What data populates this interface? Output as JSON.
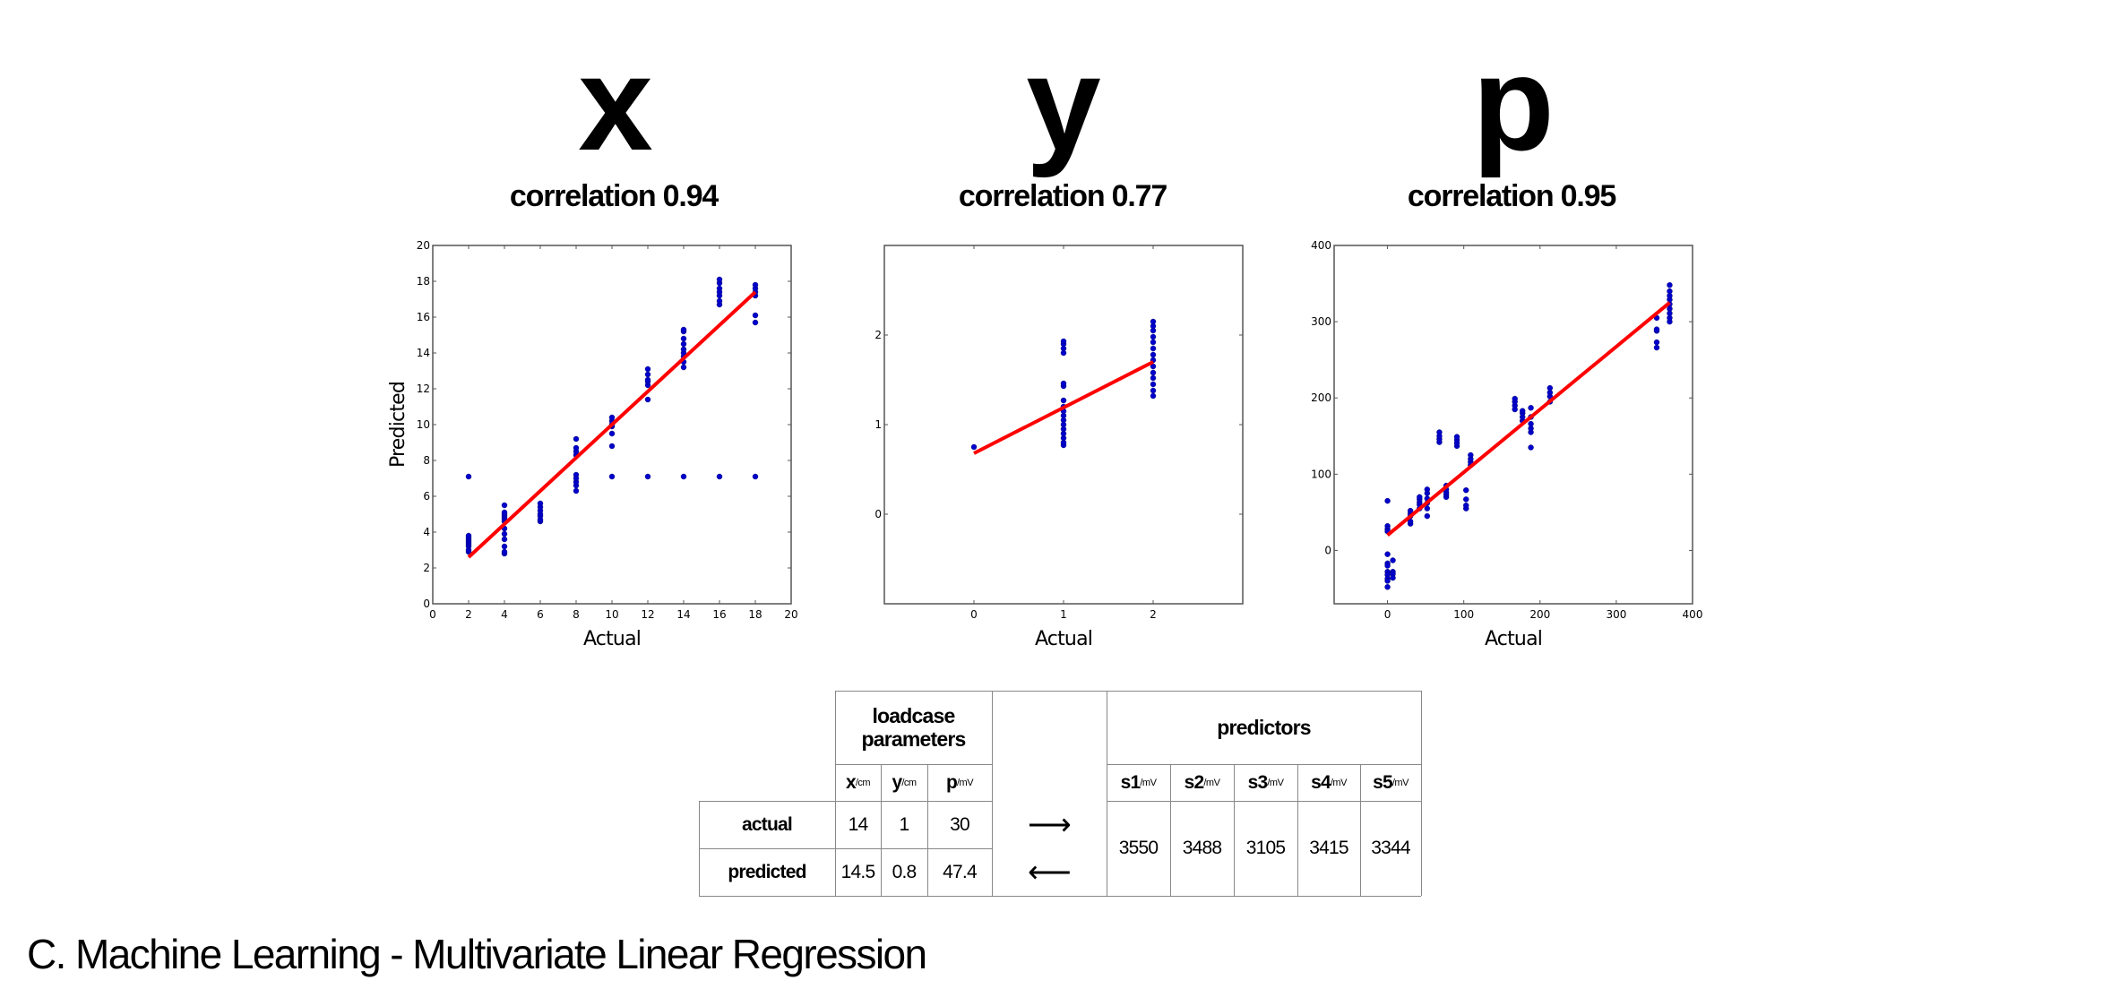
{
  "titles": [
    {
      "variable": "x",
      "correlation": "correlation 0.94"
    },
    {
      "variable": "y",
      "correlation": "correlation 0.77"
    },
    {
      "variable": "p",
      "correlation": "correlation 0.95"
    }
  ],
  "chart_data": [
    {
      "type": "scatter",
      "title": "x",
      "subtitle": "correlation 0.94",
      "xlabel": "Actual",
      "ylabel": "Predicted",
      "xlim": [
        0,
        20
      ],
      "ylim": [
        0,
        20
      ],
      "xticks": [
        0,
        2,
        4,
        6,
        8,
        10,
        12,
        14,
        16,
        18,
        20
      ],
      "yticks": [
        0,
        2,
        4,
        6,
        8,
        10,
        12,
        14,
        16,
        18,
        20
      ],
      "point_color": "#0000cc",
      "fit_color": "#ff0000",
      "fit_line": [
        [
          2,
          2.6
        ],
        [
          18,
          17.4
        ]
      ],
      "groups": [
        [
          2,
          [
            2.9,
            3.0,
            3.2,
            3.3,
            3.4,
            3.5,
            3.6,
            3.7,
            3.8,
            7.1
          ]
        ],
        [
          4,
          [
            2.8,
            2.9,
            3.2,
            3.6,
            3.9,
            4.2,
            4.6,
            4.7,
            4.8,
            4.9,
            5.0,
            5.1,
            5.5
          ]
        ],
        [
          6,
          [
            4.6,
            4.7,
            4.9,
            5.0,
            5.2,
            5.4,
            5.6
          ]
        ],
        [
          8,
          [
            6.3,
            6.6,
            6.8,
            7.0,
            7.2,
            8.3,
            8.5,
            8.7,
            9.2
          ]
        ],
        [
          10,
          [
            7.1,
            8.8,
            9.5,
            9.9,
            10.0,
            10.2,
            10.4
          ]
        ],
        [
          12,
          [
            7.1,
            11.4,
            12.2,
            12.4,
            12.5,
            12.8,
            13.1
          ]
        ],
        [
          14,
          [
            7.1,
            13.2,
            13.5,
            13.8,
            14.0,
            14.2,
            14.5,
            14.8,
            15.2,
            15.3
          ]
        ],
        [
          16,
          [
            7.1,
            16.7,
            16.9,
            17.2,
            17.4,
            17.6,
            17.9,
            18.1
          ]
        ],
        [
          18,
          [
            7.1,
            15.7,
            16.1,
            17.2,
            17.4,
            17.6,
            17.8
          ]
        ]
      ]
    },
    {
      "type": "scatter",
      "title": "y",
      "subtitle": "correlation 0.77",
      "xlabel": "Actual",
      "ylabel": "",
      "xlim": [
        -1,
        3
      ],
      "ylim": [
        -1,
        3
      ],
      "xticks": [
        0,
        1,
        2
      ],
      "yticks": [
        0,
        1,
        2
      ],
      "point_color": "#0000cc",
      "fit_color": "#ff0000",
      "fit_line": [
        [
          0,
          0.68
        ],
        [
          2,
          1.7
        ]
      ],
      "groups": [
        [
          0,
          [
            0.75
          ]
        ],
        [
          1,
          [
            0.77,
            0.8,
            0.85,
            0.9,
            0.95,
            1.0,
            1.05,
            1.1,
            1.15,
            1.2,
            1.27,
            1.43,
            1.46,
            1.8,
            1.85,
            1.9,
            1.93
          ]
        ],
        [
          2,
          [
            1.32,
            1.38,
            1.45,
            1.52,
            1.58,
            1.65,
            1.72,
            1.78,
            1.85,
            1.92,
            1.98,
            2.05,
            2.1,
            2.15
          ]
        ]
      ]
    },
    {
      "type": "scatter",
      "title": "p",
      "subtitle": "correlation 0.95",
      "xlabel": "Actual",
      "ylabel": "",
      "xlim": [
        -70,
        400
      ],
      "ylim": [
        -70,
        400
      ],
      "xticks": [
        0,
        100,
        200,
        300,
        400
      ],
      "yticks": [
        0,
        100,
        200,
        300,
        400
      ],
      "point_color": "#0000cc",
      "fit_color": "#ff0000",
      "fit_line": [
        [
          0,
          20
        ],
        [
          370,
          325
        ]
      ],
      "groups": [
        [
          0,
          [
            65,
            32,
            28,
            25,
            -5,
            -17,
            -20,
            -28,
            -32,
            -37,
            -40,
            -48
          ]
        ],
        [
          7,
          [
            -13,
            -28,
            -31,
            -36
          ]
        ],
        [
          30,
          [
            35,
            38,
            45,
            48,
            52
          ]
        ],
        [
          42,
          [
            55,
            60,
            63,
            67,
            70
          ]
        ],
        [
          52,
          [
            45,
            55,
            62,
            68,
            75,
            80
          ]
        ],
        [
          68,
          [
            142,
            146,
            150,
            155
          ]
        ],
        [
          77,
          [
            70,
            73,
            76,
            80,
            85
          ]
        ],
        [
          91,
          [
            137,
            141,
            145,
            149
          ]
        ],
        [
          103,
          [
            55,
            59,
            67,
            79
          ]
        ],
        [
          109,
          [
            112,
            116,
            120,
            125
          ]
        ],
        [
          167,
          [
            185,
            190,
            195,
            199
          ]
        ],
        [
          177,
          [
            170,
            175,
            180,
            183
          ]
        ],
        [
          188,
          [
            135,
            155,
            160,
            166,
            175,
            187
          ]
        ],
        [
          213,
          [
            195,
            202,
            207,
            213
          ]
        ],
        [
          353,
          [
            266,
            273,
            288,
            290,
            305
          ]
        ],
        [
          370,
          [
            300,
            305,
            311,
            317,
            323,
            329,
            334,
            340,
            348
          ]
        ]
      ]
    }
  ],
  "table": {
    "loadcase_header": "loadcase parameters",
    "predictors_header": "predictors",
    "params": [
      {
        "name": "x",
        "unit": "/cm"
      },
      {
        "name": "y",
        "unit": "/cm"
      },
      {
        "name": "p",
        "unit": "/mV"
      }
    ],
    "sensors": [
      {
        "name": "s1",
        "unit": "/mV",
        "value": "3550"
      },
      {
        "name": "s2",
        "unit": "/mV",
        "value": "3488"
      },
      {
        "name": "s3",
        "unit": "/mV",
        "value": "3105"
      },
      {
        "name": "s4",
        "unit": "/mV",
        "value": "3415"
      },
      {
        "name": "s5",
        "unit": "/mV",
        "value": "3344"
      }
    ],
    "rows": [
      {
        "label": "actual",
        "values": [
          "14",
          "1",
          "30"
        ],
        "arrow": "⟶"
      },
      {
        "label": "predicted",
        "values": [
          "14.5",
          "0.8",
          "47.4"
        ],
        "arrow": "⟵"
      }
    ]
  },
  "caption": "C. Machine Learning - Multivariate Linear Regression"
}
